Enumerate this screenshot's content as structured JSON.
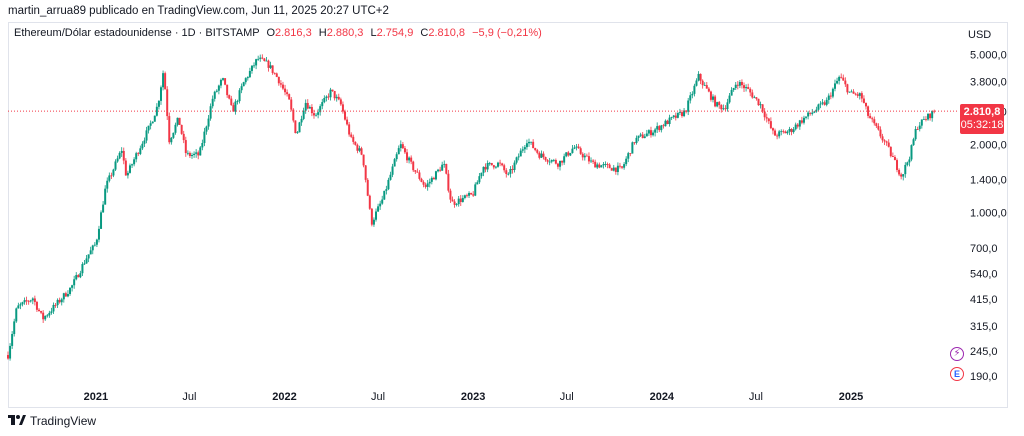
{
  "caption": "martin_arrua89 publicado en TradingView.com, Jun 11, 2025 20:27 UTC+2",
  "legend": {
    "symbol": "Ethereum/Dólar estadounidense · 1D · BITSTAMP",
    "o_label": "O",
    "o_value": "2.816,3",
    "h_label": "H",
    "h_value": "2.880,3",
    "l_label": "L",
    "l_value": "2.754,9",
    "c_label": "C",
    "c_value": "2.810,8",
    "change": "−5,9 (−0,21%)"
  },
  "currency": "USD",
  "price_badge": {
    "price": "2.810,8",
    "countdown": "05:32:18",
    "color": "#f23645"
  },
  "footer": {
    "brand": "TradingView"
  },
  "icons": {
    "flash": "flash-icon",
    "event": "earnings-event-icon"
  },
  "chart_data": {
    "type": "line",
    "title": "Ethereum/Dólar estadounidense · 1D · BITSTAMP",
    "yscale": "log",
    "ylim": [
      175,
      5800
    ],
    "y_ticks": [
      5000,
      3800,
      2800,
      2000,
      1400,
      1000,
      700,
      540,
      415,
      315,
      245,
      190
    ],
    "y_tick_labels": [
      "5.000,0",
      "3.800,0",
      "2.800,0",
      "2.000,0",
      "1.400,0",
      "1.000,0",
      "700,0",
      "540,0",
      "415,0",
      "315,0",
      "245,0",
      "190,0"
    ],
    "x_ticks": [
      {
        "label": "2021",
        "date": "2021-01-01",
        "year": true
      },
      {
        "label": "Jul",
        "date": "2021-07-01",
        "year": false
      },
      {
        "label": "2022",
        "date": "2022-01-01",
        "year": true
      },
      {
        "label": "Jul",
        "date": "2022-07-01",
        "year": false
      },
      {
        "label": "2023",
        "date": "2023-01-01",
        "year": true
      },
      {
        "label": "Jul",
        "date": "2023-07-01",
        "year": false
      },
      {
        "label": "2024",
        "date": "2024-01-01",
        "year": true
      },
      {
        "label": "Jul",
        "date": "2024-07-01",
        "year": false
      },
      {
        "label": "2025",
        "date": "2025-01-01",
        "year": true
      }
    ],
    "xlim": [
      "2020-07-15",
      "2025-07-27"
    ],
    "last_price": 2810.8,
    "series": [
      {
        "values": [
          [
            "2020-07-15",
            235
          ],
          [
            "2020-08-01",
            380
          ],
          [
            "2020-09-01",
            420
          ],
          [
            "2020-09-20",
            340
          ],
          [
            "2020-10-15",
            390
          ],
          [
            "2020-11-15",
            470
          ],
          [
            "2020-12-15",
            640
          ],
          [
            "2021-01-01",
            730
          ],
          [
            "2021-01-20",
            1300
          ],
          [
            "2021-02-20",
            1900
          ],
          [
            "2021-03-01",
            1450
          ],
          [
            "2021-03-20",
            1800
          ],
          [
            "2021-04-15",
            2400
          ],
          [
            "2021-05-01",
            3000
          ],
          [
            "2021-05-12",
            4300
          ],
          [
            "2021-05-23",
            2100
          ],
          [
            "2021-06-10",
            2600
          ],
          [
            "2021-06-25",
            1800
          ],
          [
            "2021-07-20",
            1800
          ],
          [
            "2021-08-15",
            3200
          ],
          [
            "2021-09-03",
            3900
          ],
          [
            "2021-09-22",
            2800
          ],
          [
            "2021-10-15",
            3800
          ],
          [
            "2021-11-10",
            4800
          ],
          [
            "2021-12-01",
            4500
          ],
          [
            "2021-12-20",
            3900
          ],
          [
            "2022-01-10",
            3100
          ],
          [
            "2022-01-24",
            2200
          ],
          [
            "2022-02-10",
            3100
          ],
          [
            "2022-03-01",
            2700
          ],
          [
            "2022-04-01",
            3450
          ],
          [
            "2022-04-20",
            3000
          ],
          [
            "2022-05-10",
            2100
          ],
          [
            "2022-06-01",
            1800
          ],
          [
            "2022-06-18",
            900
          ],
          [
            "2022-07-10",
            1150
          ],
          [
            "2022-08-13",
            2000
          ],
          [
            "2022-09-05",
            1600
          ],
          [
            "2022-10-01",
            1300
          ],
          [
            "2022-11-05",
            1650
          ],
          [
            "2022-11-20",
            1100
          ],
          [
            "2022-12-31",
            1200
          ],
          [
            "2023-01-20",
            1600
          ],
          [
            "2023-02-20",
            1650
          ],
          [
            "2023-03-10",
            1450
          ],
          [
            "2023-04-15",
            2100
          ],
          [
            "2023-05-10",
            1800
          ],
          [
            "2023-06-15",
            1650
          ],
          [
            "2023-07-15",
            1950
          ],
          [
            "2023-08-20",
            1650
          ],
          [
            "2023-09-15",
            1600
          ],
          [
            "2023-10-15",
            1550
          ],
          [
            "2023-11-10",
            2100
          ],
          [
            "2023-12-15",
            2300
          ],
          [
            "2024-01-15",
            2550
          ],
          [
            "2024-02-15",
            2800
          ],
          [
            "2024-03-12",
            4000
          ],
          [
            "2024-04-15",
            3000
          ],
          [
            "2024-05-01",
            2900
          ],
          [
            "2024-05-25",
            3800
          ],
          [
            "2024-06-15",
            3500
          ],
          [
            "2024-07-10",
            3000
          ],
          [
            "2024-08-05",
            2200
          ],
          [
            "2024-09-05",
            2300
          ],
          [
            "2024-10-01",
            2600
          ],
          [
            "2024-11-15",
            3100
          ],
          [
            "2024-12-10",
            4000
          ],
          [
            "2024-12-31",
            3350
          ],
          [
            "2025-01-20",
            3300
          ],
          [
            "2025-02-03",
            2700
          ],
          [
            "2025-03-10",
            2000
          ],
          [
            "2025-04-09",
            1450
          ],
          [
            "2025-04-25",
            1800
          ],
          [
            "2025-05-08",
            2400
          ],
          [
            "2025-05-25",
            2600
          ],
          [
            "2025-06-11",
            2810.8
          ]
        ]
      }
    ]
  }
}
